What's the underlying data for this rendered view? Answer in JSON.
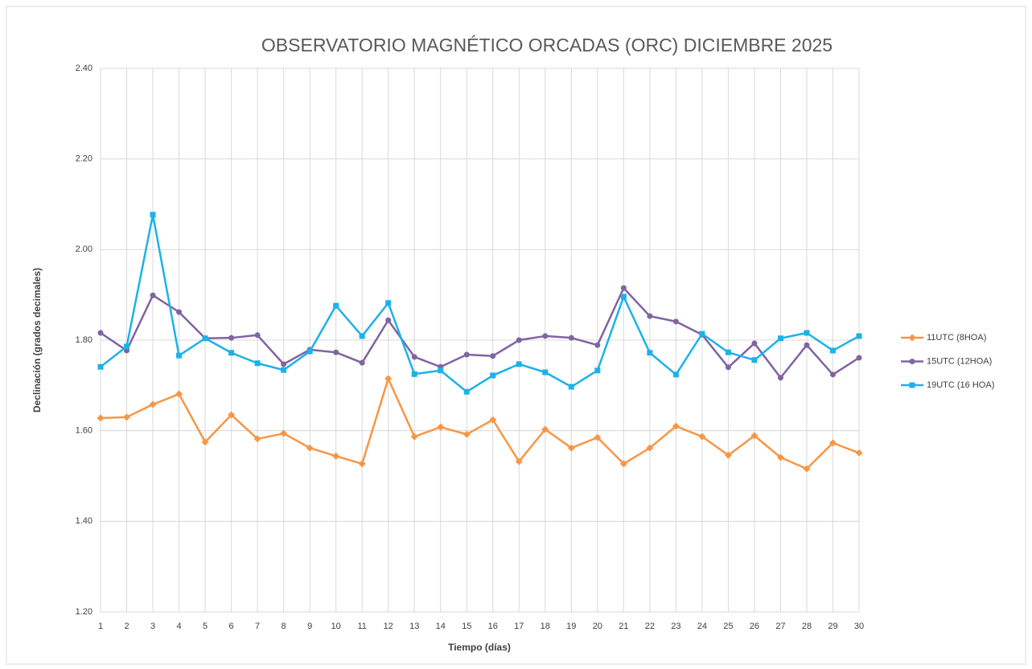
{
  "chart_data": {
    "type": "line",
    "title": "OBSERVATORIO MAGNÉTICO ORCADAS (ORC) DICIEMBRE 2025",
    "x_label": "Tiempo (días)",
    "y_label": "Declinación (grados decimales)",
    "categories": [
      "1",
      "2",
      "3",
      "4",
      "5",
      "6",
      "7",
      "8",
      "9",
      "10",
      "11",
      "12",
      "13",
      "14",
      "15",
      "16",
      "17",
      "18",
      "19",
      "20",
      "21",
      "22",
      "23",
      "24",
      "25",
      "26",
      "27",
      "28",
      "29",
      "30"
    ],
    "series": [
      {
        "name": "11UTC (8HOA)",
        "color": "#f79646",
        "marker": "diamond",
        "values": [
          1.628,
          1.63,
          1.658,
          1.681,
          1.575,
          1.635,
          1.582,
          1.594,
          1.562,
          1.544,
          1.527,
          1.715,
          1.587,
          1.608,
          1.592,
          1.624,
          1.532,
          1.603,
          1.562,
          1.585,
          1.527,
          1.562,
          1.61,
          1.587,
          1.546,
          1.589,
          1.541,
          1.516,
          1.573,
          1.551
        ]
      },
      {
        "name": "15UTC (12HOA)",
        "color": "#8064a2",
        "marker": "circle",
        "values": [
          1.816,
          1.777,
          1.899,
          1.862,
          1.804,
          1.805,
          1.811,
          1.747,
          1.779,
          1.773,
          1.75,
          1.844,
          1.763,
          1.741,
          1.768,
          1.765,
          1.8,
          1.809,
          1.805,
          1.789,
          1.915,
          1.853,
          1.841,
          1.812,
          1.74,
          1.793,
          1.717,
          1.789,
          1.724,
          1.761
        ]
      },
      {
        "name": "19UTC (16 HOA)",
        "color": "#1cb2e8",
        "marker": "square",
        "values": [
          1.741,
          1.786,
          2.077,
          1.766,
          1.804,
          1.772,
          1.749,
          1.734,
          1.775,
          1.876,
          1.809,
          1.882,
          1.725,
          1.733,
          1.686,
          1.722,
          1.747,
          1.729,
          1.697,
          1.733,
          1.896,
          1.772,
          1.724,
          1.814,
          1.773,
          1.756,
          1.804,
          1.816,
          1.777,
          1.809
        ]
      }
    ],
    "ylim": [
      1.2,
      2.4
    ],
    "yticks": [
      {
        "value": 1.2,
        "label": "1.20"
      },
      {
        "value": 1.4,
        "label": "1.40"
      },
      {
        "value": 1.6,
        "label": "1.60"
      },
      {
        "value": 1.8,
        "label": "1.80"
      },
      {
        "value": 2.0,
        "label": "2.00"
      },
      {
        "value": 2.2,
        "label": "2.20"
      },
      {
        "value": 2.4,
        "label": "2.40"
      }
    ],
    "grid": true,
    "legend": "right"
  }
}
